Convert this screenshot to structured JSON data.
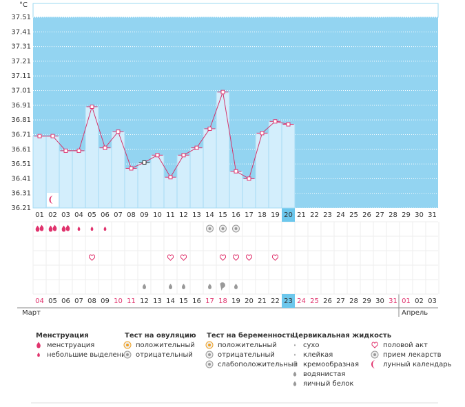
{
  "chart_data": {
    "type": "line",
    "y_unit": "°C",
    "categories": [
      "01",
      "02",
      "03",
      "04",
      "05",
      "06",
      "07",
      "08",
      "09",
      "10",
      "11",
      "12",
      "13",
      "14",
      "15",
      "16",
      "17",
      "18",
      "19",
      "20",
      "21",
      "22",
      "23",
      "24",
      "25",
      "26",
      "27",
      "28",
      "29",
      "30",
      "31"
    ],
    "values": [
      36.7,
      36.7,
      36.6,
      36.6,
      36.9,
      36.62,
      36.73,
      36.48,
      36.52,
      36.57,
      36.42,
      36.57,
      36.62,
      36.75,
      37.0,
      36.46,
      36.41,
      36.72,
      36.8,
      36.78,
      null,
      null,
      null,
      null,
      null,
      null,
      null,
      null,
      null,
      null,
      null
    ],
    "ylim": [
      36.21,
      37.51
    ],
    "yticks": [
      36.21,
      36.31,
      36.41,
      36.51,
      36.61,
      36.71,
      36.81,
      36.91,
      37.01,
      37.11,
      37.21,
      37.31,
      37.41,
      37.51
    ],
    "dates": [
      "04",
      "05",
      "06",
      "07",
      "08",
      "09",
      "10",
      "11",
      "12",
      "13",
      "14",
      "15",
      "16",
      "17",
      "18",
      "19",
      "20",
      "21",
      "22",
      "23",
      "24",
      "25",
      "26",
      "27",
      "28",
      "29",
      "30",
      "31",
      "01",
      "02",
      "03"
    ],
    "months": [
      "Март",
      "Апрель"
    ]
  },
  "legend": [
    {
      "title": "Менструация",
      "items": [
        "менструация",
        "небольшие выделения"
      ]
    },
    {
      "title": "Тест на овуляцию",
      "items": [
        "положительный",
        "отрицательный"
      ]
    },
    {
      "title": "Тест на беременность",
      "items": [
        "положительный",
        "отрицательный",
        "слабоположительный"
      ]
    },
    {
      "title": "Цервикальная жидкость",
      "items": [
        "сухо",
        "клейкая",
        "кремообразная",
        "водянистая",
        "яичный белок"
      ]
    },
    {
      "items": [
        "половой акт",
        "прием лекарств",
        "лунный календарь"
      ]
    }
  ]
}
